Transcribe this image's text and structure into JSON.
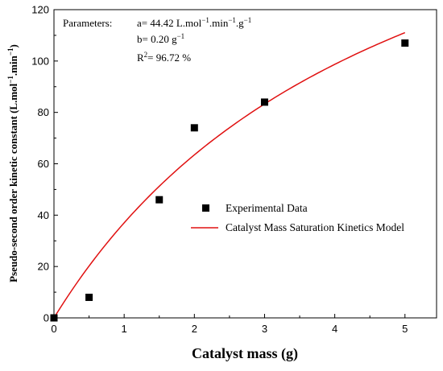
{
  "chart_data": {
    "type": "scatter",
    "xlabel": "Catalyst mass (g)",
    "ylabel": "Pseudo-second order kinetic constant (L.mol",
    "ylabel_sup1": "−1",
    "ylabel_mid": ".min",
    "ylabel_sup2": "−1",
    "ylabel_end": ")",
    "xlim": [
      0,
      5.45
    ],
    "ylim": [
      0,
      120
    ],
    "xticks": [
      0,
      1,
      2,
      3,
      4,
      5
    ],
    "yticks": [
      0,
      20,
      40,
      60,
      80,
      100,
      120
    ],
    "grid": false,
    "legend_position": "center-right",
    "series": [
      {
        "name": "Experimental Data",
        "kind": "scatter",
        "color": "#000000",
        "marker": "square",
        "x": [
          0,
          0.5,
          1.5,
          2,
          3,
          5
        ],
        "y": [
          0,
          8,
          46,
          74,
          84,
          107
        ]
      },
      {
        "name": "Catalyst Mass Saturation Kinetics Model",
        "kind": "line",
        "color": "#e01010",
        "model": {
          "a": 44.42,
          "b": 0.2
        },
        "x_range": [
          0,
          5
        ]
      }
    ],
    "annotation": {
      "label": "Parameters:",
      "a_line": {
        "pre": "a= 44.42 L.mol",
        "s1": "−1",
        "m1": ".min",
        "s2": "−1",
        "m2": ".g",
        "s3": "−1"
      },
      "b_line": {
        "pre": "b= 0.20 g",
        "s1": "−1"
      },
      "r_line": {
        "pre": "R",
        "s1": "2",
        "post": "= 96.72 %"
      }
    }
  }
}
